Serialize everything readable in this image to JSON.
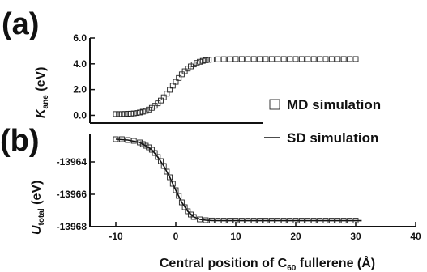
{
  "chart_data": [
    {
      "panel": "(a)",
      "type": "scatter",
      "ylabel_main": "K",
      "ylabel_sub": "ane",
      "ylabel_unit": " (eV)",
      "ylim": [
        -0.6,
        6.0
      ],
      "xlim": [
        -10,
        40
      ],
      "yticks": [
        0.0,
        2.0,
        4.0,
        6.0
      ],
      "ytick_labels": [
        "0.0",
        "2.0",
        "4.0",
        "6.0"
      ],
      "grid": false,
      "series": [
        {
          "name": "MD simulation",
          "marker": "open-square",
          "x": [
            -10.0,
            -9.5,
            -9.0,
            -8.5,
            -8.0,
            -7.5,
            -7.0,
            -6.5,
            -6.0,
            -5.5,
            -5.0,
            -4.5,
            -4.0,
            -3.5,
            -3.0,
            -2.5,
            -2.0,
            -1.5,
            -1.0,
            -0.5,
            0.0,
            0.5,
            1.0,
            1.5,
            2.0,
            2.5,
            3.0,
            3.5,
            4.0,
            4.5,
            5.0,
            5.5,
            6.0,
            7.0,
            8.0,
            9.0,
            10.0,
            11.0,
            12.0,
            13.0,
            14.0,
            15.0,
            16.0,
            17.0,
            18.0,
            19.0,
            20.0,
            21.0,
            22.0,
            23.0,
            24.0,
            25.0,
            26.0,
            27.0,
            28.0,
            29.0,
            30.0
          ],
          "y": [
            0.1,
            0.1,
            0.1,
            0.11,
            0.12,
            0.13,
            0.15,
            0.18,
            0.22,
            0.28,
            0.35,
            0.45,
            0.58,
            0.74,
            0.93,
            1.15,
            1.4,
            1.68,
            1.98,
            2.3,
            2.6,
            2.9,
            3.18,
            3.42,
            3.63,
            3.8,
            3.95,
            4.07,
            4.16,
            4.23,
            4.28,
            4.31,
            4.33,
            4.35,
            4.36,
            4.36,
            4.37,
            4.37,
            4.37,
            4.37,
            4.37,
            4.37,
            4.37,
            4.37,
            4.37,
            4.37,
            4.37,
            4.37,
            4.37,
            4.37,
            4.37,
            4.37,
            4.37,
            4.37,
            4.37,
            4.37,
            4.37
          ]
        }
      ]
    },
    {
      "panel": "(b)",
      "type": "line",
      "xlabel_main": "Central position of C",
      "xlabel_sub": "60",
      "xlabel_tail": " fullerene  (Å)",
      "ylabel_main": "U",
      "ylabel_sub": "total",
      "ylabel_unit": " (eV)",
      "xlim": [
        -10,
        40
      ],
      "ylim": [
        -13968,
        -13962.3
      ],
      "xticks": [
        -10,
        0,
        10,
        20,
        30,
        40
      ],
      "xtick_labels": [
        "-10",
        "0",
        "10",
        "20",
        "30",
        "40"
      ],
      "yticks": [
        -13964,
        -13966,
        -13968
      ],
      "ytick_labels": [
        "-13964",
        "-13966",
        "-13968"
      ],
      "grid": false,
      "series": [
        {
          "name": "MD simulation",
          "marker": "open-square",
          "x": [
            -10.0,
            -9.0,
            -8.0,
            -7.0,
            -6.0,
            -5.5,
            -5.0,
            -4.5,
            -4.0,
            -3.5,
            -3.0,
            -2.5,
            -2.0,
            -1.5,
            -1.0,
            -0.5,
            0.0,
            0.5,
            1.0,
            1.5,
            2.0,
            2.5,
            3.0,
            4.0,
            5.0,
            6.0,
            7.0,
            8.0,
            9.0,
            10.0,
            11.0,
            12.0,
            13.0,
            14.0,
            15.0,
            16.0,
            17.0,
            18.0,
            19.0,
            20.0,
            21.0,
            22.0,
            23.0,
            24.0,
            25.0,
            26.0,
            27.0,
            28.0,
            29.0,
            30.0
          ],
          "y": [
            -13962.6,
            -13962.6,
            -13962.65,
            -13962.7,
            -13962.8,
            -13962.9,
            -13963.0,
            -13963.1,
            -13963.25,
            -13963.45,
            -13963.7,
            -13963.95,
            -13964.25,
            -13964.6,
            -13964.95,
            -13965.35,
            -13965.75,
            -13966.1,
            -13966.5,
            -13966.8,
            -13967.05,
            -13967.25,
            -13967.4,
            -13967.55,
            -13967.6,
            -13967.62,
            -13967.63,
            -13967.63,
            -13967.63,
            -13967.63,
            -13967.63,
            -13967.63,
            -13967.63,
            -13967.63,
            -13967.63,
            -13967.63,
            -13967.63,
            -13967.63,
            -13967.63,
            -13967.63,
            -13967.63,
            -13967.63,
            -13967.63,
            -13967.63,
            -13967.63,
            -13967.63,
            -13967.63,
            -13967.63,
            -13967.63,
            -13967.63
          ]
        },
        {
          "name": "SD simulation",
          "marker": "line",
          "x": [
            -10,
            -8,
            -6,
            -5,
            -4,
            -3,
            -2,
            -1,
            0,
            1,
            2,
            3,
            4,
            5,
            6,
            8,
            10,
            15,
            20,
            25,
            30,
            31
          ],
          "y": [
            -13962.6,
            -13962.65,
            -13962.8,
            -13963.0,
            -13963.25,
            -13963.7,
            -13964.25,
            -13964.95,
            -13965.75,
            -13966.5,
            -13967.05,
            -13967.4,
            -13967.55,
            -13967.6,
            -13967.62,
            -13967.63,
            -13967.63,
            -13967.63,
            -13967.63,
            -13967.63,
            -13967.63,
            -13967.63
          ]
        }
      ]
    }
  ],
  "legend": {
    "md_label": "MD simulation",
    "sd_label": "SD simulation"
  }
}
